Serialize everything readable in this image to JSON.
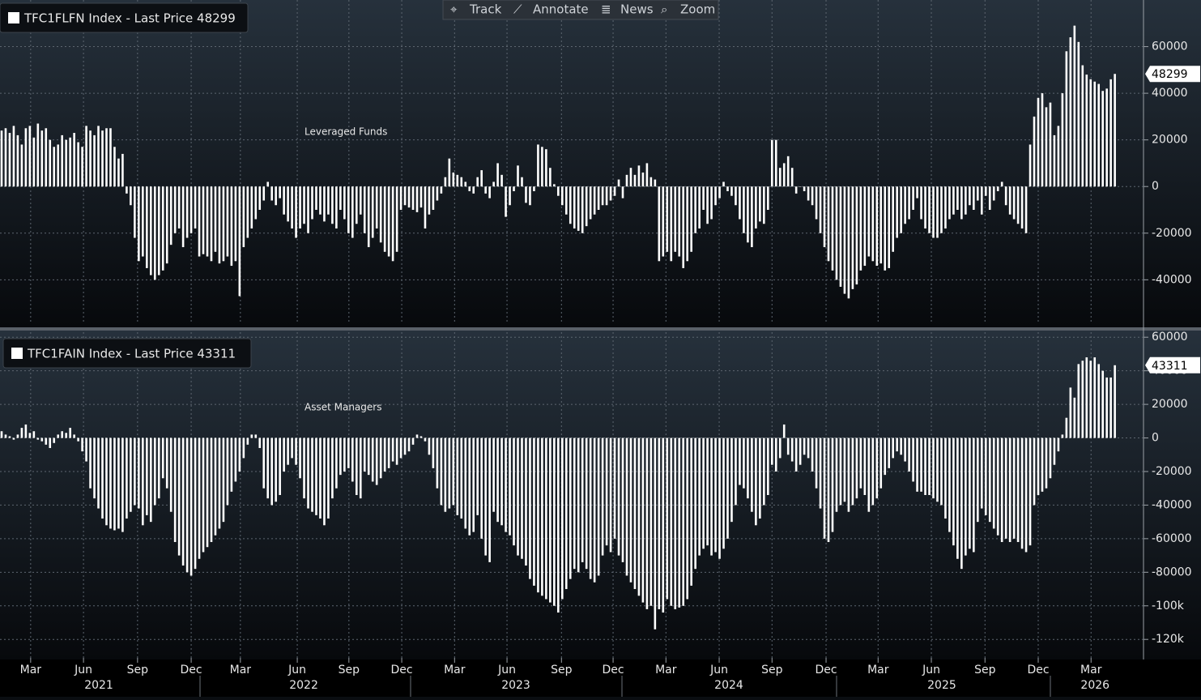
{
  "toolbar": [
    "Track",
    "Annotate",
    "News",
    "Zoom"
  ],
  "x_axis": {
    "xlim": [
      -0.4,
      283.1
    ],
    "xticks": [
      {
        "value": 7.2,
        "label": "Mar"
      },
      {
        "value": 20.3,
        "label": "Jun"
      },
      {
        "value": 33.7,
        "label": "Sep"
      },
      {
        "value": 47,
        "label": "Dec"
      },
      {
        "value": 59.2,
        "label": "Mar"
      },
      {
        "value": 73.3,
        "label": "Jun"
      },
      {
        "value": 86.1,
        "label": "Sep"
      },
      {
        "value": 99.2,
        "label": "Dec"
      },
      {
        "value": 112.3,
        "label": "Mar"
      },
      {
        "value": 125.3,
        "label": "Jun"
      },
      {
        "value": 138.8,
        "label": "Sep"
      },
      {
        "value": 151.6,
        "label": "Dec"
      },
      {
        "value": 164.7,
        "label": "Mar"
      },
      {
        "value": 177.9,
        "label": "Jun"
      },
      {
        "value": 191,
        "label": "Sep"
      },
      {
        "value": 204.4,
        "label": "Dec"
      },
      {
        "value": 217.3,
        "label": "Mar"
      },
      {
        "value": 230.5,
        "label": "Jun"
      },
      {
        "value": 243.8,
        "label": "Sep"
      },
      {
        "value": 257,
        "label": "Dec"
      },
      {
        "value": 270.1,
        "label": "Mar"
      }
    ],
    "year_labels": [
      {
        "value": 24.1,
        "label": "2021"
      },
      {
        "value": 74.9,
        "label": "2022"
      },
      {
        "value": 127.5,
        "label": "2023"
      },
      {
        "value": 180.3,
        "label": "2024"
      },
      {
        "value": 233.1,
        "label": "2025"
      },
      {
        "value": 271.1,
        "label": "2026"
      }
    ]
  },
  "chart_data": [
    {
      "type": "bar",
      "title": "TFC1FLFN Index - Last Price 48299",
      "annotation": "Leveraged Funds",
      "color": "#ffffff",
      "ylim": [
        -59000,
        80000
      ],
      "yticks": [
        -40000,
        -20000,
        0,
        20000,
        40000,
        60000
      ],
      "grid": true,
      "values": [
        24000,
        25000,
        23000,
        26000,
        22000,
        18000,
        25000,
        26000,
        21000,
        27000,
        24000,
        25000,
        20000,
        17000,
        18000,
        22000,
        20000,
        21000,
        23000,
        19000,
        17000,
        26000,
        24000,
        22000,
        26000,
        24000,
        25000,
        25000,
        17000,
        12000,
        14000,
        -3000,
        -8000,
        -22000,
        -32000,
        -30000,
        -35000,
        -38000,
        -40000,
        -38000,
        -36000,
        -33000,
        -25000,
        -20000,
        -18000,
        -26000,
        -22000,
        -20000,
        -18000,
        -30000,
        -29000,
        -30000,
        -32000,
        -28000,
        -33000,
        -32000,
        -30000,
        -34000,
        -32000,
        -47000,
        -26000,
        -22000,
        -18000,
        -14000,
        -10000,
        -6000,
        2000,
        -6000,
        -8000,
        -5000,
        -12000,
        -15000,
        -18000,
        -22000,
        -18000,
        -16000,
        -20000,
        -14000,
        -10000,
        -12000,
        -15000,
        -12000,
        -16000,
        -18000,
        -10000,
        -14000,
        -20000,
        -22000,
        -16000,
        -12000,
        -20000,
        -26000,
        -22000,
        -18000,
        -24000,
        -28000,
        -30000,
        -32000,
        -28000,
        -10000,
        -8000,
        -9000,
        -10000,
        -11000,
        -9000,
        -18000,
        -12000,
        -10000,
        -6000,
        -3000,
        4000,
        12000,
        6000,
        5000,
        4000,
        2000,
        -2000,
        -3000,
        4000,
        7000,
        -3000,
        -5000,
        2000,
        10000,
        5000,
        -13000,
        -8000,
        -2000,
        9000,
        4000,
        -7000,
        -8000,
        -2000,
        18000,
        17000,
        16000,
        8000,
        1000,
        -4000,
        -8000,
        -12000,
        -16000,
        -18000,
        -19000,
        -20000,
        -17000,
        -14000,
        -12000,
        -10000,
        -8000,
        -8000,
        -6000,
        -4000,
        3000,
        -5000,
        5000,
        8000,
        5000,
        9000,
        6000,
        10000,
        4000,
        3000,
        -32000,
        -30000,
        -28000,
        -32000,
        -28000,
        -30000,
        -35000,
        -32000,
        -28000,
        -20000,
        -18000,
        -10000,
        -16000,
        -14000,
        -8000,
        -5000,
        2000,
        -2000,
        -4000,
        -8000,
        -14000,
        -20000,
        -24000,
        -26000,
        -18000,
        -15000,
        -16000,
        -10000,
        20000,
        20000,
        8000,
        10000,
        13000,
        8000,
        -3000,
        0,
        -2000,
        -6000,
        -8000,
        -14000,
        -20000,
        -26000,
        -32000,
        -36000,
        -40000,
        -43000,
        -46000,
        -48000,
        -44000,
        -42000,
        -36000,
        -34000,
        -30000,
        -32000,
        -34000,
        -33000,
        -36000,
        -35000,
        -28000,
        -22000,
        -20000,
        -16000,
        -14000,
        -10000,
        -5000,
        -14000,
        -18000,
        -20000,
        -22000,
        -22000,
        -20000,
        -18000,
        -14000,
        -12000,
        -10000,
        -14000,
        -12000,
        -8000,
        -10000,
        -6000,
        -12000,
        -4000,
        -10000,
        -6000,
        -2000,
        2000,
        -8000,
        -12000,
        -14000,
        -16000,
        -18000,
        -20000,
        18000,
        30000,
        38000,
        40000,
        34000,
        36000,
        22000,
        26000,
        40000,
        58000,
        64000,
        69000,
        62000,
        52000,
        48000,
        46000,
        45000,
        44000,
        41000,
        42000,
        46000,
        48299
      ]
    },
    {
      "type": "bar",
      "title": "TFC1FAIN Index - Last Price 43311",
      "annotation": "Asset Managers",
      "color": "#ffffff",
      "ylim": [
        -131000,
        63000
      ],
      "yticks": [
        {
          "value": -120000,
          "label": "-120k"
        },
        {
          "value": -100000,
          "label": "-100k"
        },
        -80000,
        -60000,
        -40000,
        -20000,
        0,
        20000,
        40000,
        60000
      ],
      "grid": true,
      "values": [
        4000,
        2000,
        1000,
        -1000,
        2000,
        6000,
        8000,
        3000,
        4000,
        -1000,
        -2000,
        -4000,
        -6000,
        -3000,
        2000,
        4000,
        3000,
        6000,
        2000,
        -2000,
        -8000,
        -14000,
        -30000,
        -36000,
        -42000,
        -48000,
        -52000,
        -54000,
        -55000,
        -54000,
        -56000,
        -48000,
        -44000,
        -40000,
        -42000,
        -52000,
        -46000,
        -50000,
        -40000,
        -36000,
        -24000,
        -30000,
        -44000,
        -62000,
        -70000,
        -76000,
        -80000,
        -82000,
        -78000,
        -72000,
        -68000,
        -65000,
        -62000,
        -58000,
        -54000,
        -50000,
        -40000,
        -32000,
        -26000,
        -20000,
        -12000,
        -4000,
        2000,
        2000,
        -6000,
        -30000,
        -36000,
        -40000,
        -38000,
        -34000,
        -20000,
        -16000,
        -12000,
        -16000,
        -24000,
        -36000,
        -42000,
        -44000,
        -46000,
        -48000,
        -52000,
        -48000,
        -36000,
        -30000,
        -22000,
        -20000,
        -18000,
        -26000,
        -34000,
        -36000,
        -20000,
        -22000,
        -26000,
        -28000,
        -24000,
        -20000,
        -18000,
        -14000,
        -16000,
        -12000,
        -10000,
        -8000,
        -4000,
        2000,
        1000,
        -2000,
        -10000,
        -18000,
        -30000,
        -40000,
        -44000,
        -42000,
        -40000,
        -46000,
        -48000,
        -54000,
        -58000,
        -56000,
        -46000,
        -60000,
        -70000,
        -74000,
        -44000,
        -50000,
        -52000,
        -56000,
        -58000,
        -64000,
        -70000,
        -72000,
        -76000,
        -84000,
        -88000,
        -92000,
        -94000,
        -96000,
        -98000,
        -100000,
        -104000,
        -96000,
        -90000,
        -84000,
        -78000,
        -80000,
        -74000,
        -78000,
        -84000,
        -86000,
        -82000,
        -70000,
        -64000,
        -68000,
        -60000,
        -70000,
        -74000,
        -82000,
        -86000,
        -90000,
        -94000,
        -98000,
        -102000,
        -100000,
        -114000,
        -102000,
        -104000,
        -96000,
        -100000,
        -102000,
        -101000,
        -100000,
        -96000,
        -88000,
        -78000,
        -70000,
        -66000,
        -64000,
        -70000,
        -68000,
        -72000,
        -66000,
        -60000,
        -50000,
        -40000,
        -28000,
        -30000,
        -36000,
        -44000,
        -52000,
        -48000,
        -40000,
        -34000,
        -16000,
        -20000,
        -12000,
        8000,
        -10000,
        -14000,
        -20000,
        -16000,
        -10000,
        -12000,
        -20000,
        -30000,
        -42000,
        -60000,
        -62000,
        -56000,
        -44000,
        -40000,
        -38000,
        -44000,
        -40000,
        -36000,
        -30000,
        -34000,
        -44000,
        -40000,
        -36000,
        -30000,
        -22000,
        -18000,
        -12000,
        -8000,
        -10000,
        -14000,
        -20000,
        -26000,
        -32000,
        -32000,
        -34000,
        -34000,
        -36000,
        -38000,
        -40000,
        -48000,
        -56000,
        -64000,
        -72000,
        -78000,
        -70000,
        -66000,
        -68000,
        -50000,
        -42000,
        -46000,
        -50000,
        -54000,
        -58000,
        -62000,
        -60000,
        -62000,
        -60000,
        -62000,
        -66000,
        -68000,
        -64000,
        -40000,
        -34000,
        -32000,
        -30000,
        -24000,
        -16000,
        -8000,
        2000,
        12000,
        30000,
        24000,
        44000,
        46000,
        48000,
        46000,
        48000,
        44000,
        40000,
        36000,
        36000,
        43311
      ]
    }
  ]
}
